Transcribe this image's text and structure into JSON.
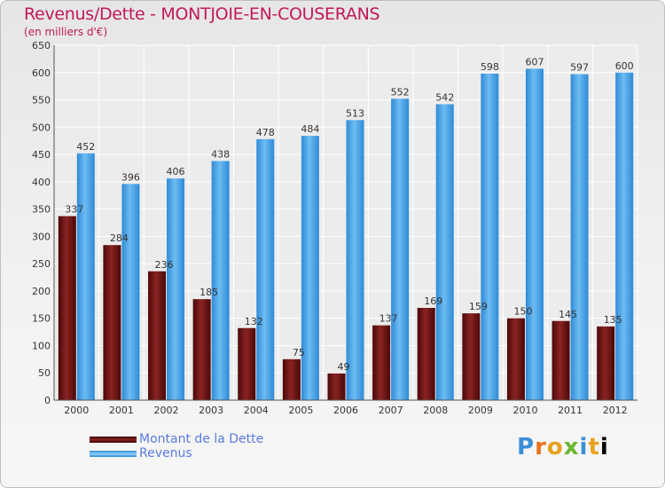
{
  "chart_data": {
    "type": "bar",
    "title": "Revenus/Dette - MONTJOIE-EN-COUSERANS",
    "subtitle": "(en milliers d'€)",
    "categories": [
      "2000",
      "2001",
      "2002",
      "2003",
      "2004",
      "2005",
      "2006",
      "2007",
      "2008",
      "2009",
      "2010",
      "2011",
      "2012"
    ],
    "series": [
      {
        "name": "Montant de la Dette",
        "values": [
          337,
          284,
          236,
          185,
          132,
          75,
          49,
          137,
          169,
          159,
          150,
          145,
          135
        ],
        "color": "#6b0f0f"
      },
      {
        "name": "Revenus",
        "values": [
          452,
          396,
          406,
          438,
          478,
          484,
          513,
          552,
          542,
          598,
          607,
          597,
          600
        ],
        "color": "#4aa3e6"
      }
    ],
    "ylim": [
      0,
      650
    ],
    "yticks": [
      0,
      50,
      100,
      150,
      200,
      250,
      300,
      350,
      400,
      450,
      500,
      550,
      600,
      650
    ],
    "grid": true,
    "legend_position": "bottom-left"
  },
  "brand": {
    "logo_letters": [
      "P",
      "r",
      "o",
      "x",
      "i",
      "t",
      "i"
    ]
  }
}
